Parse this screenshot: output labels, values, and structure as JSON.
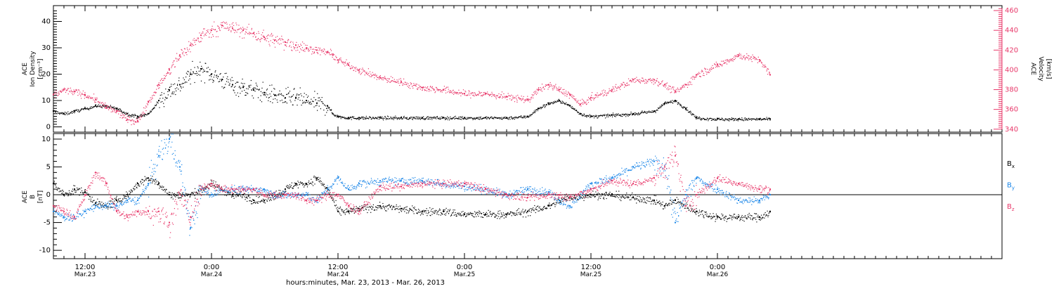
{
  "colors": {
    "axis": "#000000",
    "density": "#000000",
    "velocity": "#e8386a",
    "bx": "#000000",
    "by": "#1a86e8",
    "bz": "#e8386a"
  },
  "xlabel": "hours:minutes, Mar. 23, 2013 - Mar. 26, 2013",
  "x_ticks": [
    {
      "hour": 12,
      "time": "12:00",
      "date": "Mar.23"
    },
    {
      "hour": 24,
      "time": "0:00",
      "date": "Mar.24"
    },
    {
      "hour": 36,
      "time": "12:00",
      "date": "Mar.24"
    },
    {
      "hour": 48,
      "time": "0:00",
      "date": "Mar.25"
    },
    {
      "hour": 60,
      "time": "12:00",
      "date": "Mar.25"
    },
    {
      "hour": 72,
      "time": "0:00",
      "date": "Mar.26"
    }
  ],
  "top_panel": {
    "left_label": [
      "ACE",
      "Ion Density",
      "[cm⁻³]"
    ],
    "right_label": [
      "ACE",
      "Velocity",
      "[km/s]"
    ]
  },
  "bottom_panel": {
    "left_label": [
      "ACE",
      "B",
      "[nT]"
    ],
    "legend": [
      {
        "base": "B",
        "sub": "x",
        "key": "bx"
      },
      {
        "base": "B",
        "sub": "y",
        "key": "by"
      },
      {
        "base": "B",
        "sub": "z",
        "key": "bz"
      }
    ]
  },
  "chart_data": [
    {
      "type": "scatter",
      "xlabel": "hours:minutes, Mar. 23, 2013 - Mar. 26, 2013",
      "x_unit": "hours since 00:00 Mar. 23, 2013",
      "xlim": [
        9,
        99
      ],
      "y_left": {
        "ylabel": "ACE Ion Density [cm⁻³]",
        "ylim": [
          -2,
          46
        ],
        "ticks": [
          0,
          10,
          20,
          30,
          40
        ]
      },
      "y_right": {
        "ylabel": "ACE Velocity [km/s]",
        "ylim": [
          337,
          465
        ],
        "ticks": [
          340,
          360,
          380,
          400,
          420,
          440,
          460
        ]
      },
      "series": [
        {
          "name": "Ion Density",
          "axis": "left",
          "color": "#000000",
          "x": [
            9,
            10,
            11,
            12,
            13,
            14,
            15,
            16,
            17,
            18,
            19,
            20,
            21,
            22,
            23,
            24,
            25,
            26,
            27,
            28,
            29,
            30,
            31,
            32,
            33,
            34,
            35,
            35.5,
            36,
            37,
            38,
            40,
            42,
            44,
            46,
            48,
            50,
            52,
            54,
            55,
            56,
            57,
            58,
            59,
            60,
            62,
            64,
            66,
            67,
            68,
            69,
            70,
            72,
            74,
            76,
            77
          ],
          "y": [
            6,
            5,
            6,
            7,
            8,
            8,
            7,
            5,
            4,
            5,
            10,
            14,
            16,
            20,
            22,
            20,
            18,
            16,
            15,
            14,
            13,
            12,
            11,
            11,
            10,
            9,
            8,
            5,
            4,
            3.5,
            3.5,
            3.5,
            3.5,
            3.5,
            3.5,
            3.5,
            3.5,
            3.5,
            4,
            7,
            9,
            10,
            8,
            5,
            4,
            4.5,
            5,
            6,
            9,
            10,
            7,
            3.5,
            3,
            3,
            3,
            3
          ]
        },
        {
          "name": "Velocity",
          "axis": "right",
          "color": "#e8386a",
          "x": [
            9,
            10,
            11,
            12,
            13,
            14,
            15,
            16,
            17,
            18,
            19,
            20,
            21,
            22,
            23,
            24,
            25,
            26,
            27,
            28,
            29,
            30,
            31,
            32,
            33,
            34,
            35,
            35.5,
            36,
            37,
            38,
            40,
            42,
            44,
            46,
            48,
            50,
            52,
            54,
            55,
            56,
            57,
            58,
            59,
            60,
            62,
            64,
            66,
            67,
            68,
            69,
            70,
            72,
            74,
            76,
            77
          ],
          "y": [
            375,
            380,
            378,
            375,
            370,
            362,
            358,
            350,
            348,
            368,
            385,
            400,
            415,
            425,
            435,
            440,
            445,
            442,
            440,
            437,
            433,
            430,
            428,
            425,
            422,
            420,
            418,
            415,
            410,
            405,
            400,
            392,
            388,
            382,
            380,
            376,
            376,
            373,
            370,
            380,
            385,
            380,
            375,
            365,
            372,
            380,
            390,
            390,
            385,
            378,
            385,
            395,
            405,
            415,
            410,
            395
          ]
        }
      ]
    },
    {
      "type": "scatter",
      "x_unit": "hours since 00:00 Mar. 23, 2013",
      "xlim": [
        9,
        99
      ],
      "ylabel": "ACE B [nT]",
      "ylim": [
        -11.5,
        11
      ],
      "ticks": [
        -10,
        -5,
        0,
        5,
        10
      ],
      "series": [
        {
          "name": "Bx",
          "color": "#000000",
          "x": [
            9,
            10,
            11,
            12,
            13,
            14,
            15,
            16,
            17,
            18,
            19,
            20,
            21,
            22,
            23,
            24,
            25,
            26,
            27,
            28,
            29,
            30,
            31,
            32,
            33,
            34,
            35,
            36,
            37,
            38,
            40,
            42,
            44,
            46,
            48,
            50,
            52,
            54,
            56,
            57,
            58,
            60,
            62,
            64,
            66,
            67,
            68,
            69,
            70,
            72,
            74,
            76,
            77
          ],
          "y": [
            2,
            0,
            1,
            0.5,
            -1.5,
            -2,
            -1,
            0,
            2,
            3,
            2,
            0,
            0,
            0,
            1,
            2,
            1,
            0,
            0,
            -1,
            -1,
            0,
            1,
            2,
            2,
            3,
            1,
            -3,
            -3,
            -2.5,
            -2,
            -2.5,
            -3,
            -3,
            -3.5,
            -3.5,
            -3.5,
            -3,
            -2,
            -1,
            -0.5,
            0,
            0,
            -0.5,
            -1,
            -2,
            -1,
            -2,
            -3,
            -4,
            -4,
            -4,
            -3
          ]
        },
        {
          "name": "By",
          "color": "#1a86e8",
          "x": [
            9,
            10,
            11,
            12,
            13,
            14,
            15,
            16,
            17,
            18,
            19,
            20,
            21,
            22,
            23,
            24,
            25,
            26,
            27,
            28,
            29,
            30,
            31,
            32,
            33,
            34,
            35,
            36,
            37,
            38,
            40,
            42,
            44,
            46,
            48,
            50,
            52,
            54,
            56,
            57,
            58,
            60,
            62,
            64,
            66,
            67,
            68,
            69,
            70,
            72,
            74,
            76,
            77
          ],
          "y": [
            -3,
            -4,
            -4,
            -3,
            -2,
            -2,
            -2,
            -1,
            -1,
            2,
            7,
            10,
            5,
            -6,
            1,
            0,
            1,
            1,
            1,
            1,
            1,
            0,
            0,
            0,
            0,
            -1,
            1,
            3,
            1,
            2,
            2.5,
            2.5,
            2.5,
            2,
            1.5,
            1,
            0,
            1,
            0.5,
            -1,
            -2,
            2,
            3,
            5,
            6,
            5,
            -5,
            0,
            3,
            1,
            -1,
            -1,
            0
          ]
        },
        {
          "name": "Bz",
          "color": "#e8386a",
          "x": [
            9,
            10,
            11,
            12,
            13,
            14,
            15,
            16,
            17,
            18,
            19,
            20,
            21,
            22,
            23,
            24,
            25,
            26,
            27,
            28,
            29,
            30,
            31,
            32,
            33,
            34,
            35,
            36,
            37,
            38,
            40,
            42,
            44,
            46,
            48,
            50,
            52,
            54,
            56,
            57,
            58,
            60,
            62,
            64,
            66,
            67,
            68,
            69,
            70,
            72,
            74,
            76,
            77
          ],
          "y": [
            -2,
            -3,
            -4,
            0,
            4,
            2,
            -3,
            -4,
            -3,
            -3,
            -3,
            -5,
            0,
            -4,
            1,
            2,
            1,
            1,
            1,
            1,
            0,
            0,
            0,
            0,
            -1,
            -1,
            0,
            0,
            -2,
            -3,
            1.5,
            1.5,
            2,
            2,
            2,
            1,
            0,
            -0.5,
            0,
            0,
            -0.5,
            1,
            2.5,
            2,
            3,
            5,
            7,
            -2,
            0,
            3,
            2,
            1,
            1
          ]
        }
      ]
    }
  ]
}
